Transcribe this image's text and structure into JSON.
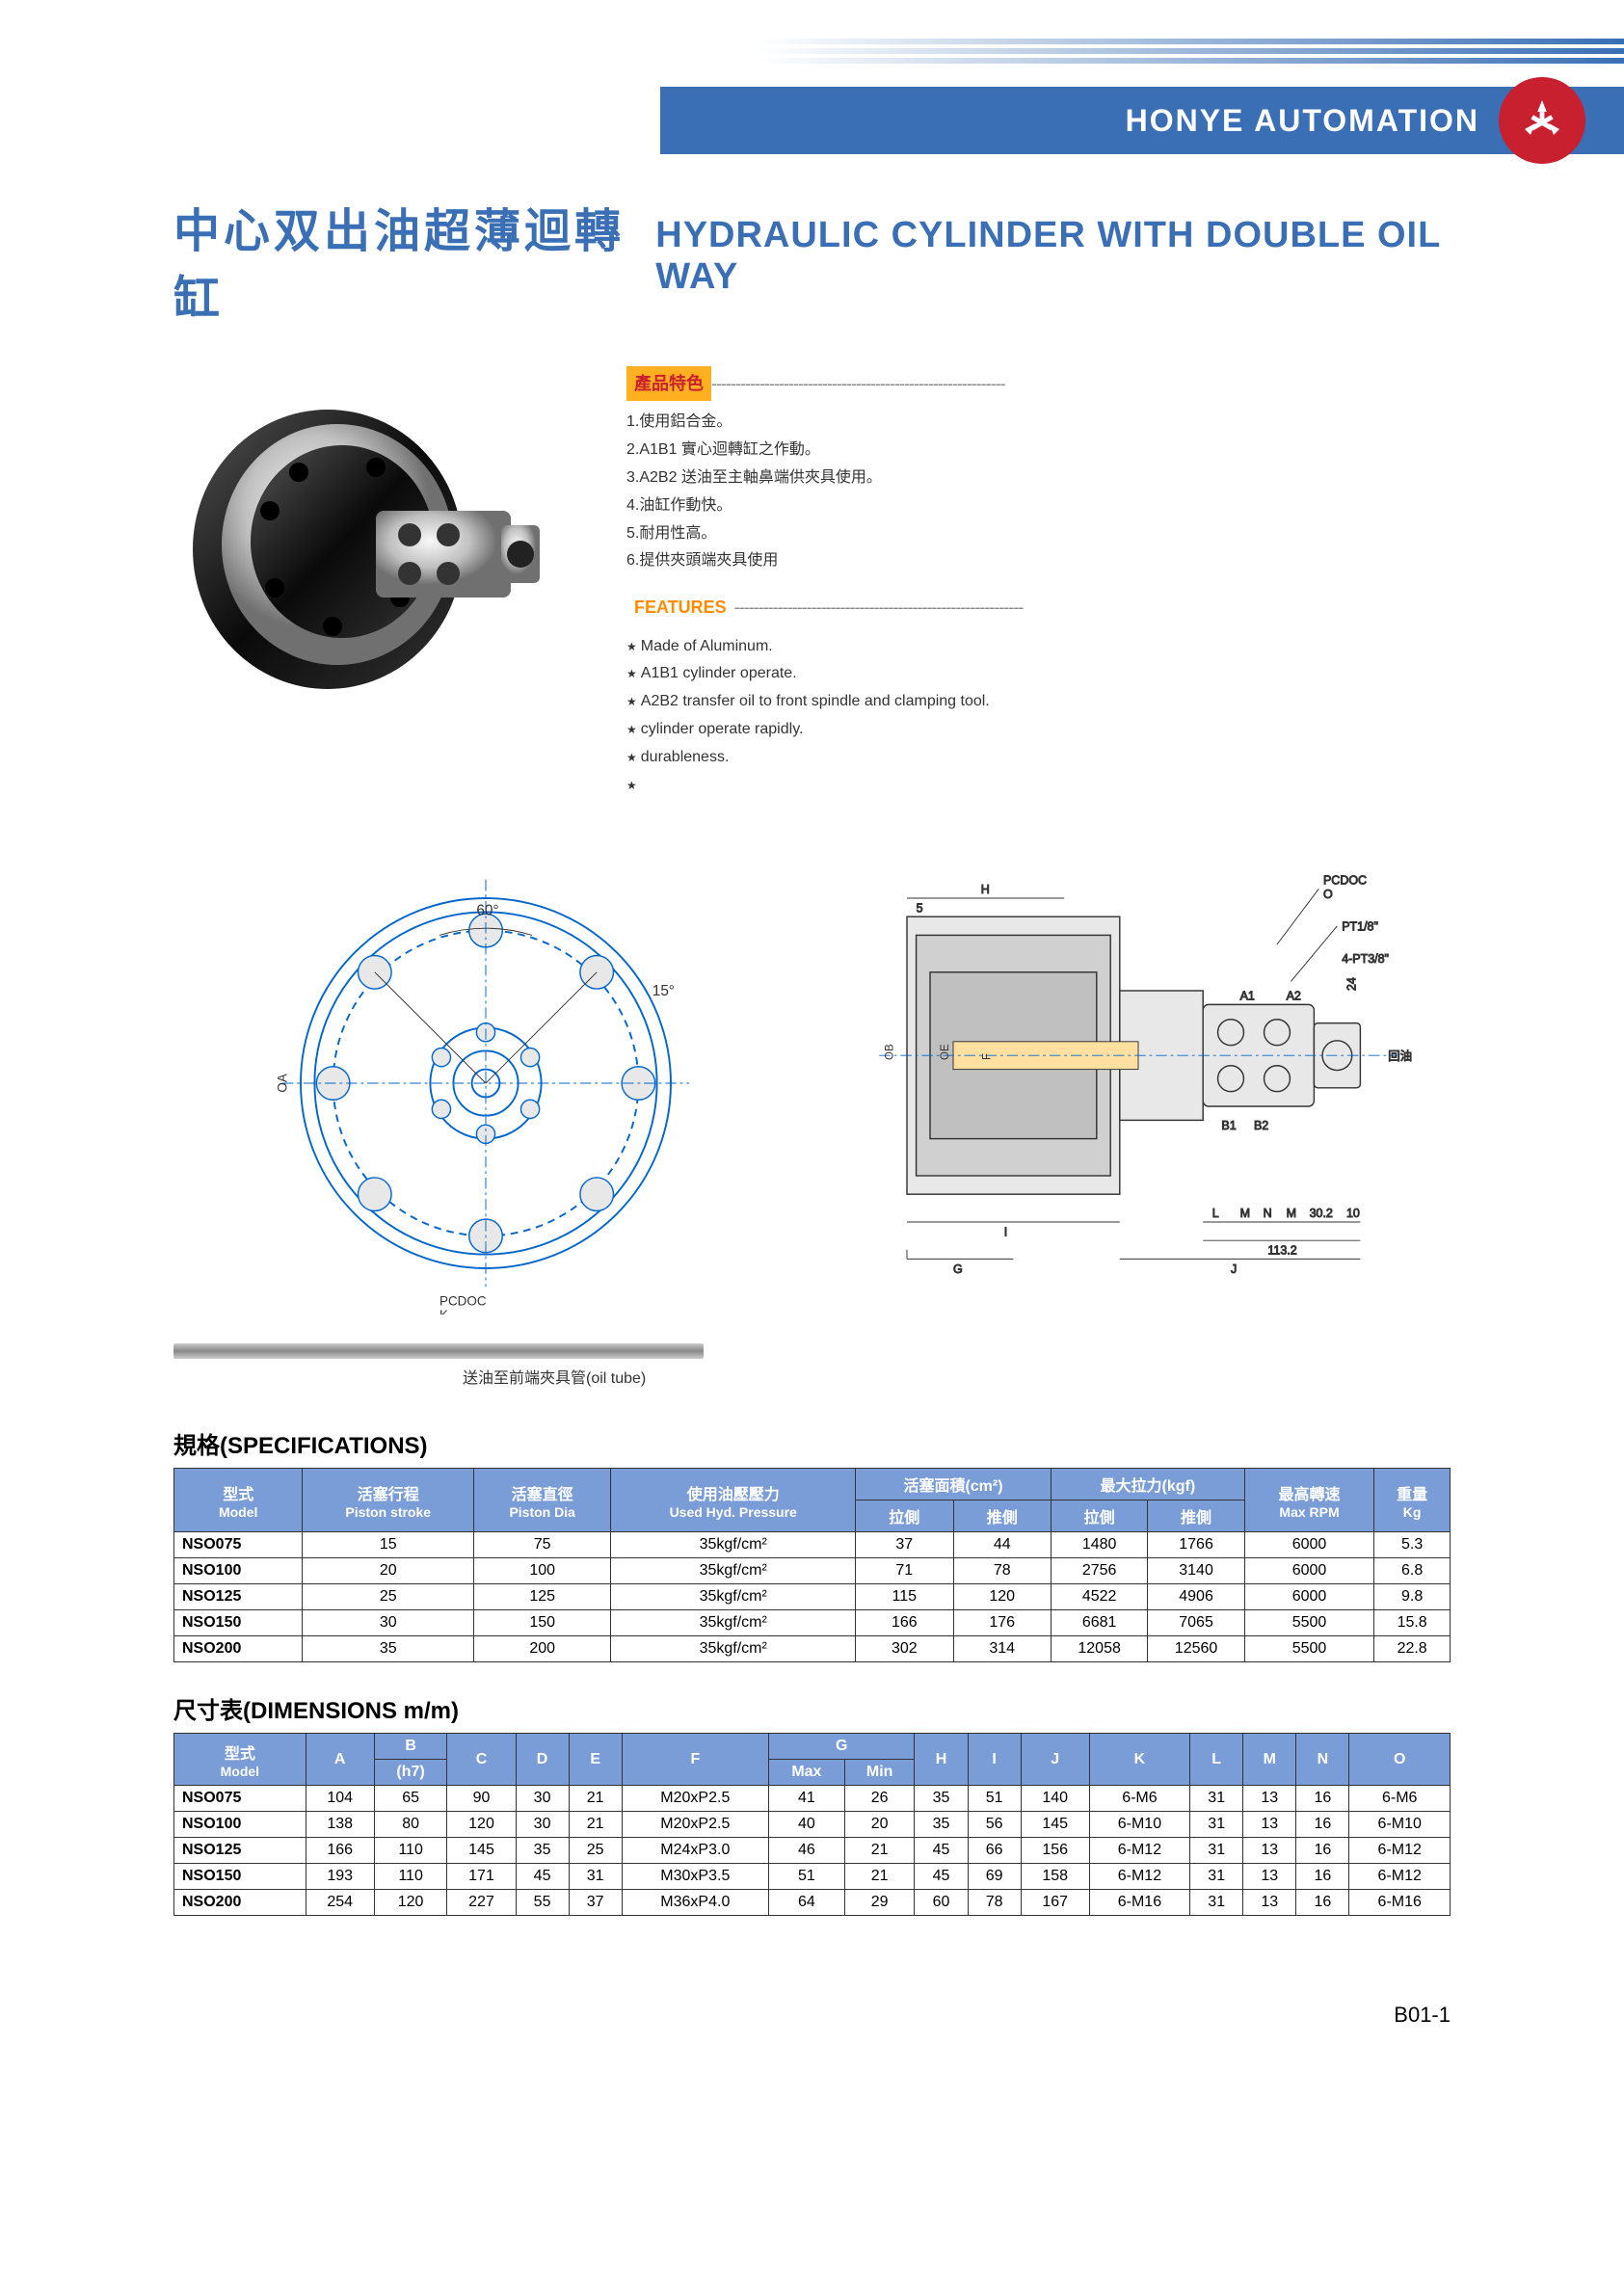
{
  "header": {
    "company": "HONYE AUTOMATION"
  },
  "title": {
    "cn": "中心双出油超薄迴轉缸",
    "en": "HYDRAULIC CYLINDER WITH DOUBLE OIL WAY"
  },
  "features_cn": {
    "header": "產品特色",
    "items": [
      "1.使用鋁合金。",
      "2.A1B1 實心迴轉缸之作動。",
      "3.A2B2 送油至主軸鼻端供夾具使用。",
      "4.油缸作動快。",
      "5.耐用性高。",
      "6.提供夾頭端夾具使用"
    ]
  },
  "features_en": {
    "header": "FEATURES",
    "items": [
      "Made of Aluminum.",
      "A1B1 cylinder operate.",
      "A2B2 transfer oil to front spindle and clamping tool.",
      "cylinder operate rapidly.",
      "durableness.",
      ""
    ]
  },
  "oil_tube_label": "送油至前端夾具管(oil tube)",
  "spec_table": {
    "title": "規格(SPECIFICATIONS)",
    "headers": [
      {
        "cn": "型式",
        "en": "Model"
      },
      {
        "cn": "活塞行程",
        "en": "Piston stroke"
      },
      {
        "cn": "活塞直徑",
        "en": "Piston Dia"
      },
      {
        "cn": "使用油壓壓力",
        "en": "Used Hyd. Pressure"
      },
      {
        "cn": "活塞面積(cm²)",
        "sub1": "拉側",
        "sub2": "推側"
      },
      {
        "cn": "最大拉力(kgf)",
        "sub1": "拉側",
        "sub2": "推側"
      },
      {
        "cn": "最高轉速",
        "en": "Max RPM"
      },
      {
        "cn": "重量",
        "en": "Kg"
      }
    ],
    "rows": [
      [
        "NSO075",
        "15",
        "75",
        "35kgf/cm²",
        "37",
        "44",
        "1480",
        "1766",
        "6000",
        "5.3"
      ],
      [
        "NSO100",
        "20",
        "100",
        "35kgf/cm²",
        "71",
        "78",
        "2756",
        "3140",
        "6000",
        "6.8"
      ],
      [
        "NSO125",
        "25",
        "125",
        "35kgf/cm²",
        "115",
        "120",
        "4522",
        "4906",
        "6000",
        "9.8"
      ],
      [
        "NSO150",
        "30",
        "150",
        "35kgf/cm²",
        "166",
        "176",
        "6681",
        "7065",
        "5500",
        "15.8"
      ],
      [
        "NSO200",
        "35",
        "200",
        "35kgf/cm²",
        "302",
        "314",
        "12058",
        "12560",
        "5500",
        "22.8"
      ]
    ]
  },
  "dim_table": {
    "title": "尺寸表(DIMENSIONS m/m)",
    "headers": [
      "型式 Model",
      "A",
      "B (h7)",
      "C",
      "D",
      "E",
      "F",
      "G Max",
      "G Min",
      "H",
      "I",
      "J",
      "K",
      "L",
      "M",
      "N",
      "O"
    ],
    "rows": [
      [
        "NSO075",
        "104",
        "65",
        "90",
        "30",
        "21",
        "M20xP2.5",
        "41",
        "26",
        "35",
        "51",
        "140",
        "6-M6",
        "31",
        "13",
        "16",
        "6-M6"
      ],
      [
        "NSO100",
        "138",
        "80",
        "120",
        "30",
        "21",
        "M20xP2.5",
        "40",
        "20",
        "35",
        "56",
        "145",
        "6-M10",
        "31",
        "13",
        "16",
        "6-M10"
      ],
      [
        "NSO125",
        "166",
        "110",
        "145",
        "35",
        "25",
        "M24xP3.0",
        "46",
        "21",
        "45",
        "66",
        "156",
        "6-M12",
        "31",
        "13",
        "16",
        "6-M12"
      ],
      [
        "NSO150",
        "193",
        "110",
        "171",
        "45",
        "31",
        "M30xP3.5",
        "51",
        "21",
        "45",
        "69",
        "158",
        "6-M12",
        "31",
        "13",
        "16",
        "6-M12"
      ],
      [
        "NSO200",
        "254",
        "120",
        "227",
        "55",
        "37",
        "M36xP4.0",
        "64",
        "29",
        "60",
        "78",
        "167",
        "6-M16",
        "31",
        "13",
        "16",
        "6-M16"
      ]
    ]
  },
  "drawing_labels": {
    "left": {
      "angle1": "60°",
      "angle2": "15°",
      "oa": "OA",
      "pcdoc_k": "PCDOC K"
    },
    "right": {
      "pcdoc_o": "PCDOC O",
      "pt18": "PT1/8\"",
      "pt38": "4-PT3/8\"",
      "a1": "A1",
      "a2": "A2",
      "b1": "B1",
      "b2": "B2",
      "return_oil": "回油",
      "dims": "H 5 I G J L M N M 30.2 10 113.2 24",
      "ob": "OB",
      "oe": "OE",
      "f": "F"
    }
  },
  "page_num": "B01-1",
  "colors": {
    "header_blue": "#3a6fb5",
    "logo_red": "#c8202f",
    "table_header": "#7a9dd8",
    "feat_orange": "#ff8c00",
    "feat_bg": "#ffb020"
  }
}
